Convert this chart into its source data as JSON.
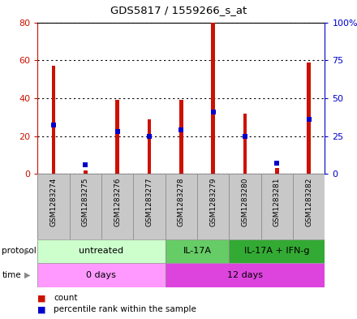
{
  "title": "GDS5817 / 1559266_s_at",
  "samples": [
    "GSM1283274",
    "GSM1283275",
    "GSM1283276",
    "GSM1283277",
    "GSM1283278",
    "GSM1283279",
    "GSM1283280",
    "GSM1283281",
    "GSM1283282"
  ],
  "count_values": [
    57,
    2,
    39,
    29,
    39,
    80,
    32,
    3,
    59
  ],
  "percentile_values": [
    32,
    6,
    28,
    25,
    29,
    41,
    25,
    7,
    36
  ],
  "ylim_left": [
    0,
    80
  ],
  "ylim_right": [
    0,
    100
  ],
  "yticks_left": [
    0,
    20,
    40,
    60,
    80
  ],
  "yticks_right": [
    0,
    25,
    50,
    75,
    100
  ],
  "ytick_labels_right": [
    "0",
    "25",
    "50",
    "75",
    "100%"
  ],
  "protocol_groups": [
    {
      "label": "untreated",
      "start": 0,
      "end": 4,
      "color": "#ccffcc"
    },
    {
      "label": "IL-17A",
      "start": 4,
      "end": 6,
      "color": "#66cc66"
    },
    {
      "label": "IL-17A + IFN-g",
      "start": 6,
      "end": 9,
      "color": "#33aa33"
    }
  ],
  "time_groups": [
    {
      "label": "0 days",
      "start": 0,
      "end": 4,
      "color": "#ff99ff"
    },
    {
      "label": "12 days",
      "start": 4,
      "end": 9,
      "color": "#dd44dd"
    }
  ],
  "bar_color": "#cc1100",
  "percentile_color": "#0000cc",
  "background_color": "#ffffff",
  "plot_bg_color": "#ffffff",
  "grid_color": "#000000",
  "left_axis_color": "#cc1100",
  "right_axis_color": "#0000cc",
  "sample_label_bg": "#c8c8c8",
  "sample_label_border": "#888888"
}
